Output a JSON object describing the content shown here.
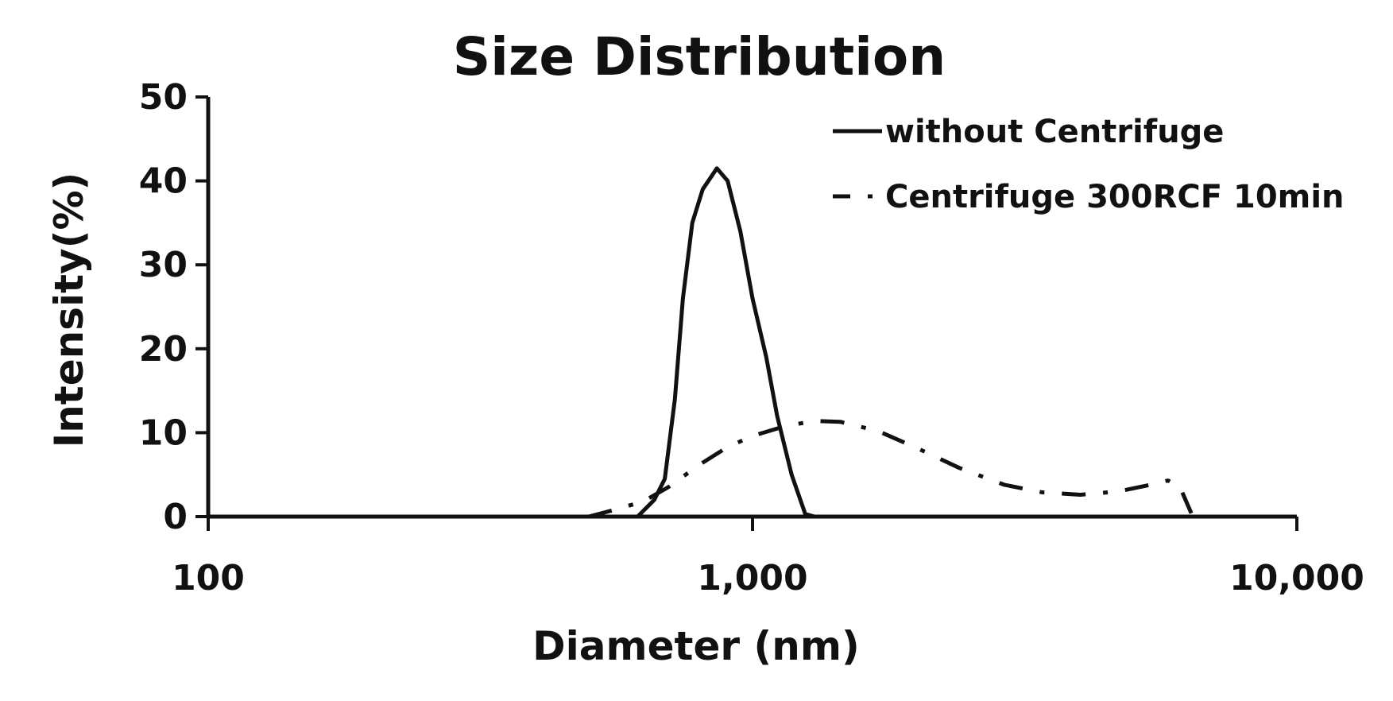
{
  "chart_data": {
    "type": "line",
    "title": "Size Distribution",
    "xlabel": "Diameter (nm)",
    "ylabel": "Intensity(%)",
    "x_scale": "log",
    "xlim": [
      100,
      10000
    ],
    "ylim": [
      0,
      50
    ],
    "x_ticks": [
      100,
      1000,
      10000
    ],
    "x_tick_labels": [
      "100",
      "1,000",
      "10,000"
    ],
    "y_ticks": [
      0,
      10,
      20,
      30,
      40,
      50
    ],
    "y_tick_labels": [
      "0",
      "10",
      "20",
      "30",
      "40",
      "50"
    ],
    "grid": false,
    "legend_position": "top-right",
    "series": [
      {
        "name": "without Centrifuge",
        "line_style": "solid",
        "color": "#111111",
        "points": [
          [
            615,
            0
          ],
          [
            660,
            2
          ],
          [
            690,
            4.5
          ],
          [
            720,
            14
          ],
          [
            745,
            26
          ],
          [
            775,
            35
          ],
          [
            810,
            39
          ],
          [
            860,
            41.5
          ],
          [
            900,
            40
          ],
          [
            950,
            34
          ],
          [
            1000,
            26
          ],
          [
            1060,
            19
          ],
          [
            1110,
            12
          ],
          [
            1180,
            5
          ],
          [
            1250,
            0.3
          ],
          [
            1300,
            0
          ]
        ]
      },
      {
        "name": "Centrifuge 300RCF 10min",
        "line_style": "dash-dot",
        "color": "#111111",
        "points": [
          [
            500,
            0
          ],
          [
            550,
            0.7
          ],
          [
            630,
            1.8
          ],
          [
            700,
            3.5
          ],
          [
            800,
            6.2
          ],
          [
            900,
            8.3
          ],
          [
            1000,
            9.6
          ],
          [
            1150,
            10.8
          ],
          [
            1300,
            11.4
          ],
          [
            1450,
            11.3
          ],
          [
            1700,
            10.2
          ],
          [
            2000,
            8.2
          ],
          [
            2400,
            5.8
          ],
          [
            2900,
            3.8
          ],
          [
            3400,
            2.9
          ],
          [
            4000,
            2.6
          ],
          [
            4700,
            3
          ],
          [
            5300,
            3.7
          ],
          [
            5800,
            4.3
          ],
          [
            6100,
            3.5
          ],
          [
            6400,
            0.4
          ]
        ]
      }
    ]
  }
}
